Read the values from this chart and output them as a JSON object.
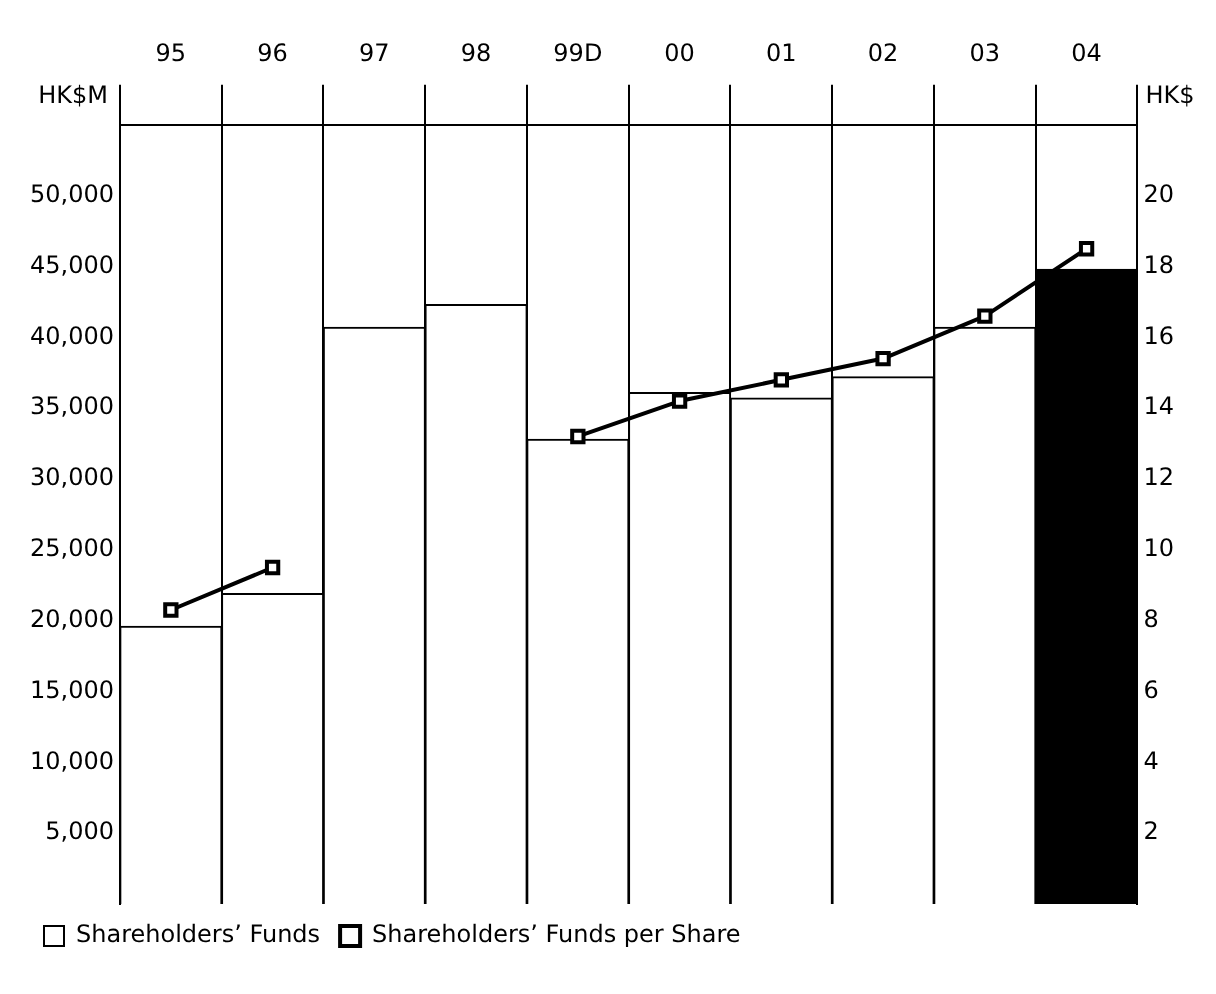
{
  "chart_data": {
    "type": "bar",
    "categories": [
      "95",
      "96",
      "97",
      "98",
      "99D",
      "00",
      "01",
      "02",
      "03",
      "04"
    ],
    "ylabel": "HK$M",
    "y2label": "HK$",
    "series": [
      {
        "name": "Shareholders’ Funds",
        "colors": [
          "#ffffff",
          "#ffffff",
          "#ffffff",
          "#ffffff",
          "#ffffff",
          "#ffffff",
          "#ffffff",
          "#ffffff",
          "#ffffff",
          "#000000"
        ],
        "values": [
          19600,
          21900,
          40700,
          42300,
          32800,
          36100,
          35700,
          37200,
          40700,
          44800
        ]
      },
      {
        "name": "Shareholders’ Funds per Share",
        "type": "line",
        "axis": "y2",
        "color": "#000000",
        "values": [
          8.3,
          9.5,
          null,
          null,
          13.2,
          14.2,
          14.8,
          15.4,
          16.6,
          18.5
        ]
      }
    ],
    "ylim": [
      0,
      55000
    ],
    "yticks": [
      {
        "value": 5000,
        "label": "5,000"
      },
      {
        "value": 10000,
        "label": "10,000"
      },
      {
        "value": 15000,
        "label": "15,000"
      },
      {
        "value": 20000,
        "label": "20,000"
      },
      {
        "value": 25000,
        "label": "25,000"
      },
      {
        "value": 30000,
        "label": "30,000"
      },
      {
        "value": 35000,
        "label": "35,000"
      },
      {
        "value": 40000,
        "label": "40,000"
      },
      {
        "value": 45000,
        "label": "45,000"
      },
      {
        "value": 50000,
        "label": "50,000"
      }
    ],
    "y2lim": [
      0,
      22
    ],
    "y2ticks": [
      2,
      4,
      6,
      8,
      10,
      12,
      14,
      16,
      18,
      20
    ],
    "grid": "x",
    "legend": "bottom",
    "marker": "square",
    "line_style": "solid"
  }
}
